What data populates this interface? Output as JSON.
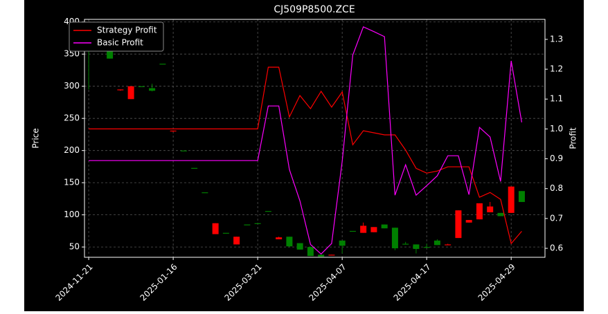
{
  "chart_data": {
    "type": "candlestick",
    "title": "CJ509P8500.ZCE",
    "ylabel": "Price",
    "y2label": "Profit",
    "categories": [
      "2024-11-21",
      null,
      null,
      null,
      null,
      null,
      null,
      null,
      "2025-01-16",
      null,
      null,
      null,
      null,
      null,
      null,
      null,
      "2025-03-21",
      null,
      null,
      null,
      null,
      null,
      null,
      null,
      "2025-04-07",
      null,
      null,
      null,
      null,
      null,
      null,
      null,
      "2025-04-17",
      null,
      null,
      null,
      null,
      null,
      null,
      null,
      "2025-04-29",
      null
    ],
    "open": [
      355,
      null,
      343,
      295,
      300,
      300,
      293,
      335,
      231,
      200,
      173,
      135,
      87,
      72,
      66,
      85,
      87,
      106,
      65,
      51,
      46,
      36,
      35,
      38,
      52,
      75,
      83,
      81,
      79,
      48,
      55,
      47,
      50,
      53,
      54,
      107,
      92,
      118,
      113,
      98,
      144,
      120
    ],
    "high": [
      400,
      null,
      355,
      295,
      300,
      300,
      304,
      335,
      231,
      200,
      173,
      135,
      87,
      72,
      66,
      85,
      87,
      106,
      66,
      66,
      56,
      50,
      38,
      38,
      60,
      75,
      88,
      81,
      85,
      80,
      58,
      54,
      55,
      62,
      55,
      107,
      92,
      118,
      120,
      103,
      144,
      137
    ],
    "low": [
      295,
      null,
      343,
      293,
      280,
      300,
      292,
      335,
      229,
      200,
      173,
      135,
      70,
      72,
      54,
      85,
      87,
      106,
      62,
      50,
      46,
      36,
      35,
      37,
      40,
      75,
      72,
      73,
      79,
      45,
      55,
      40,
      50,
      53,
      53,
      64,
      88,
      93,
      104,
      98,
      103,
      120
    ],
    "close": [
      395,
      null,
      354,
      294,
      280,
      300,
      297,
      335,
      230,
      200,
      173,
      135,
      70,
      72,
      54,
      85,
      87,
      106,
      62,
      66,
      56,
      50,
      38,
      37,
      60,
      75,
      72,
      73,
      85,
      80,
      55,
      54,
      50,
      60,
      53,
      64,
      88,
      93,
      104,
      103,
      103,
      137
    ],
    "up_color": "#008000",
    "down_color": "#ff0000",
    "series": [
      {
        "name": "Strategy Profit",
        "color": "#ff0000",
        "axis": "y2",
        "values": [
          1.0,
          1.0,
          1.0,
          1.0,
          1.0,
          1.0,
          1.0,
          1.0,
          1.0,
          1.0,
          1.0,
          1.0,
          1.0,
          1.0,
          1.0,
          1.0,
          1.0,
          1.207,
          1.207,
          1.04,
          1.112,
          1.068,
          1.126,
          1.073,
          1.124,
          0.947,
          0.994,
          0.987,
          0.98,
          0.98,
          0.929,
          0.868,
          0.852,
          0.859,
          0.873,
          0.873,
          0.873,
          0.771,
          0.787,
          0.764,
          0.616,
          0.657
        ]
      },
      {
        "name": "Basic Profit",
        "color": "#ff00ff",
        "axis": "y2",
        "values": [
          0.894,
          0.894,
          0.894,
          0.894,
          0.894,
          0.894,
          0.894,
          0.894,
          0.894,
          0.894,
          0.894,
          0.894,
          0.894,
          0.894,
          0.894,
          0.894,
          0.894,
          1.077,
          1.077,
          0.864,
          0.759,
          0.613,
          0.581,
          0.616,
          0.892,
          1.247,
          1.342,
          1.326,
          1.309,
          0.778,
          0.88,
          0.778,
          0.81,
          0.843,
          0.91,
          0.91,
          0.78,
          1.005,
          0.973,
          0.824,
          1.228,
          1.022
        ]
      }
    ],
    "ylim": [
      34,
      404
    ],
    "yticks": [
      50,
      100,
      150,
      200,
      250,
      300,
      350,
      400
    ],
    "y2lim": [
      0.57,
      1.367
    ],
    "y2ticks": [
      0.6,
      0.7,
      0.8,
      0.9,
      {
        "value": 1,
        "label": "1.0"
      },
      1.1,
      1.2,
      1.3
    ],
    "grid": true,
    "legend": "upper left"
  }
}
